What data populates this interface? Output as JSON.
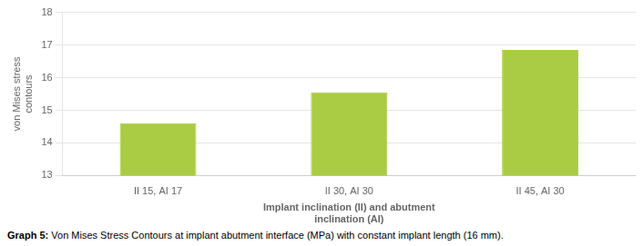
{
  "chart_data": {
    "type": "bar",
    "categories": [
      "II 15, AI 17",
      "II 30, AI 30",
      "II 45, AI 30"
    ],
    "values": [
      14.6,
      15.55,
      16.85
    ],
    "color": "#AACC44",
    "ylabel": "von Mises stress\ncontours",
    "xlabel": "Implant inclination (II) and abutment\ninclination (AI)",
    "ylim": [
      13,
      18
    ],
    "yticks": [
      13,
      14,
      15,
      16,
      17,
      18
    ],
    "grid": true,
    "annotations": [
      "Graph 5: Von Mises Stress Contours at implant abutment interface (MPa) with constant implant length (16 mm)."
    ]
  }
}
